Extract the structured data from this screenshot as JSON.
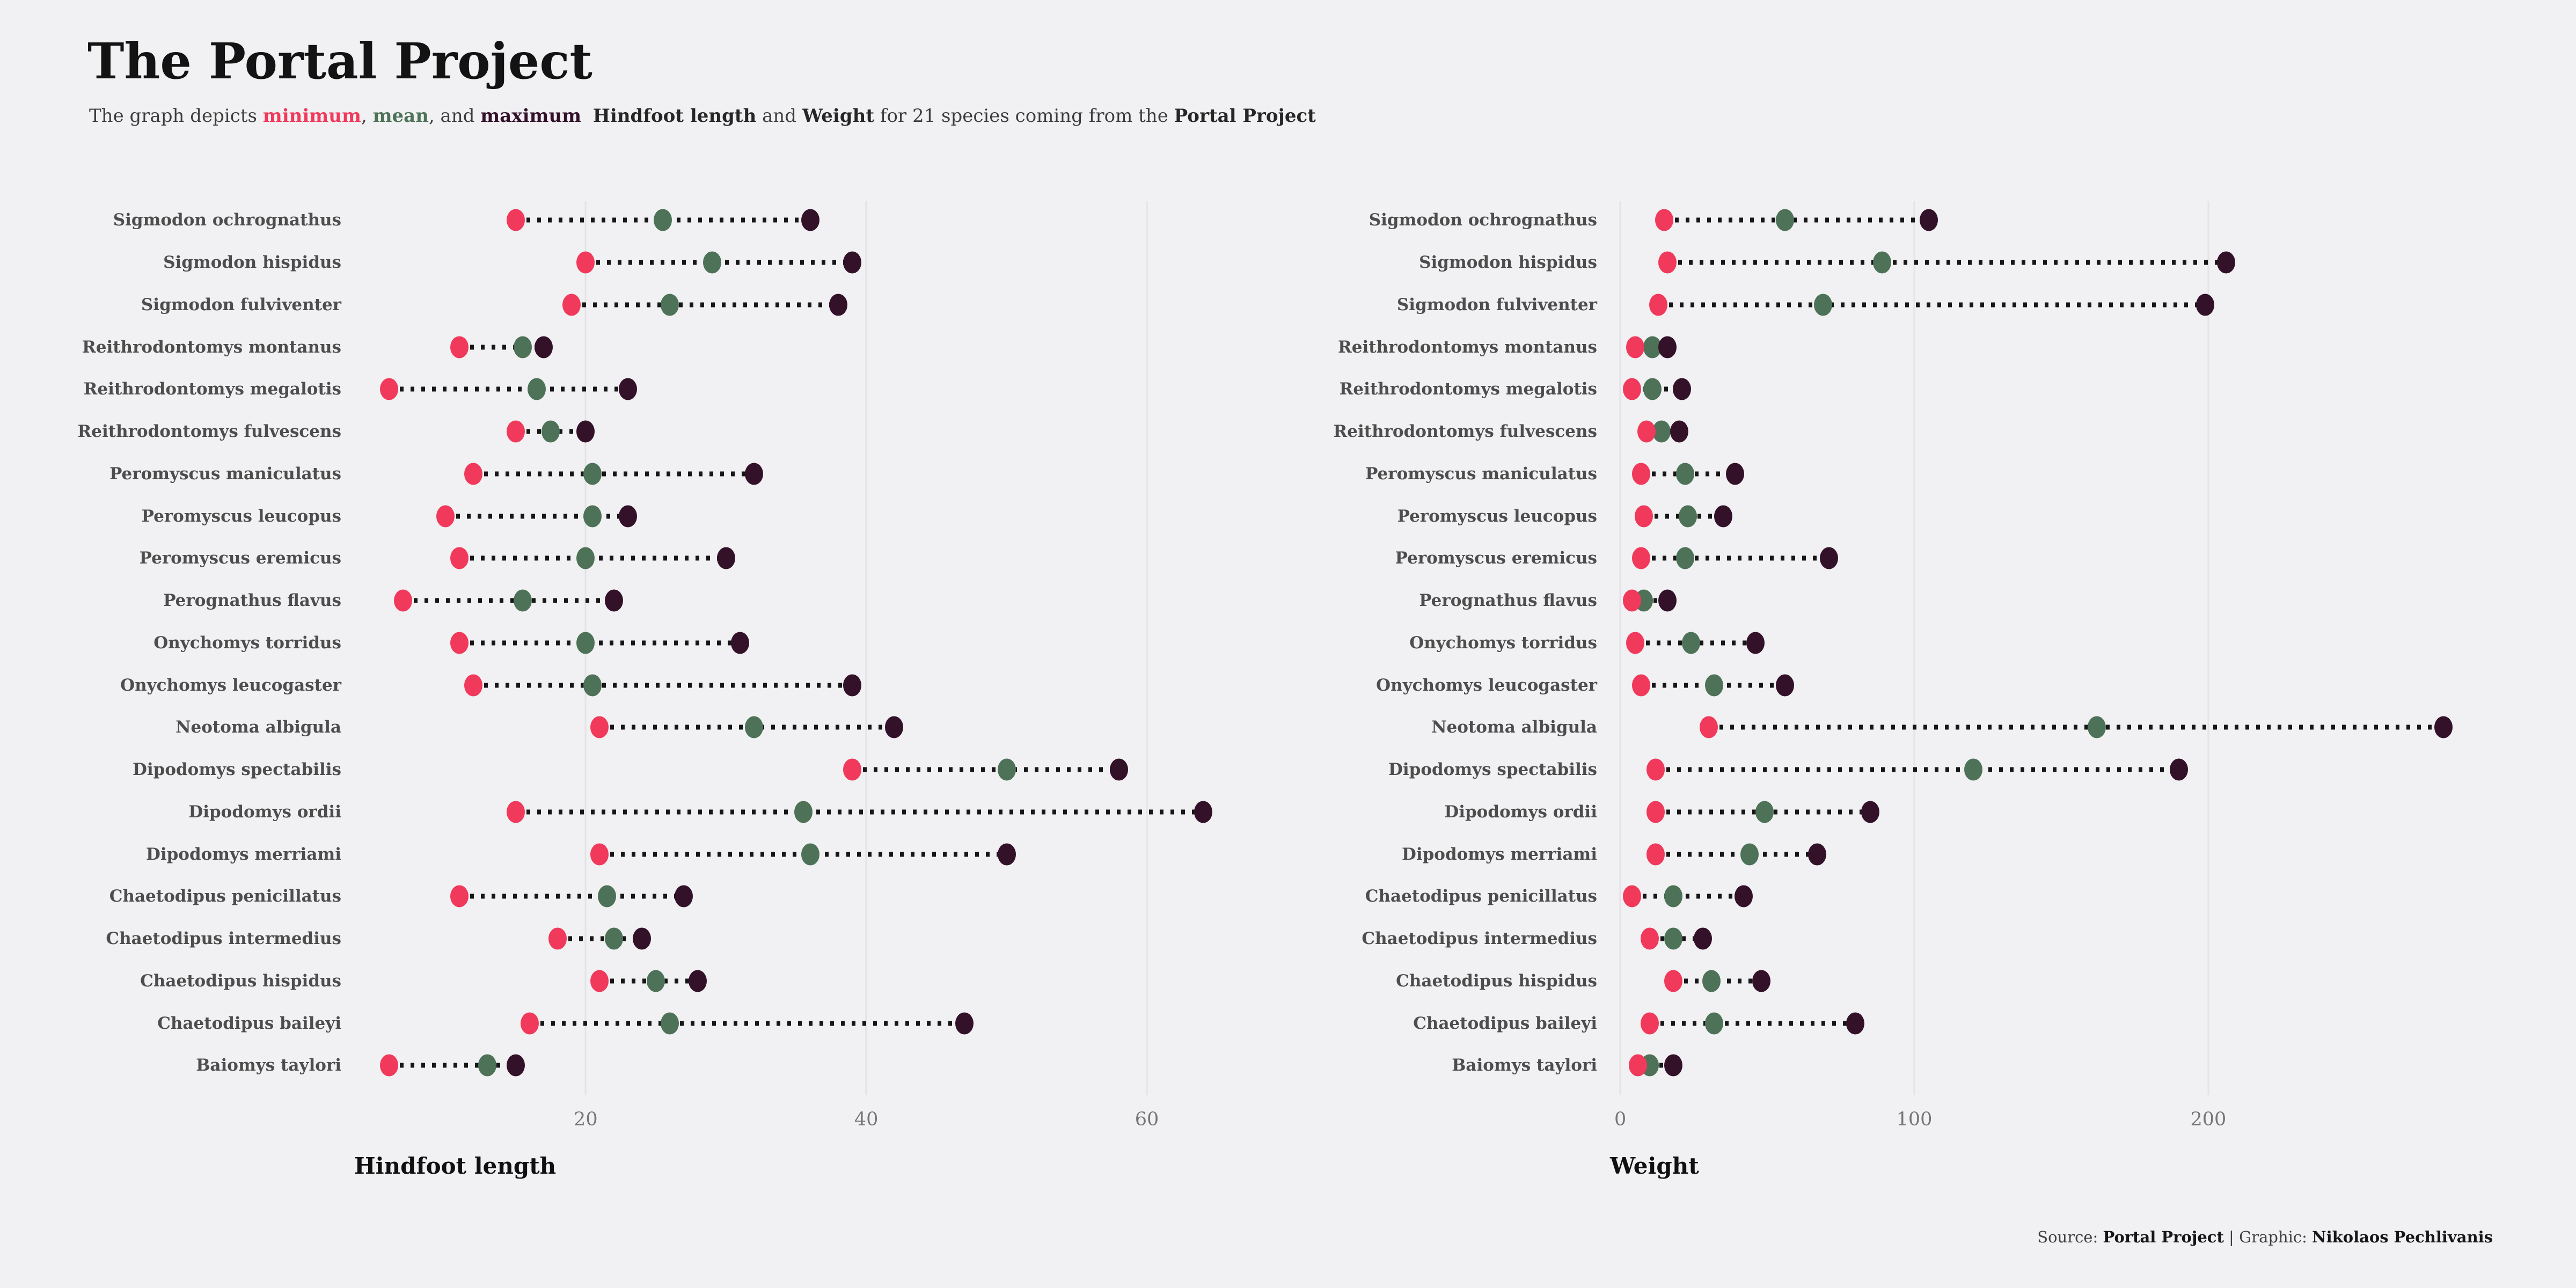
{
  "header": {
    "title": "The Portal Project",
    "subtitle_parts": [
      {
        "text": "The graph depicts ",
        "style": "normal"
      },
      {
        "text": "minimum",
        "style": "min"
      },
      {
        "text": ", ",
        "style": "normal"
      },
      {
        "text": "mean",
        "style": "mean"
      },
      {
        "text": ", and ",
        "style": "normal"
      },
      {
        "text": "maximum",
        "style": "max"
      },
      {
        "text": "  ",
        "style": "normal"
      },
      {
        "text": "Hindfoot length",
        "style": "strong"
      },
      {
        "text": " and ",
        "style": "normal"
      },
      {
        "text": "Weight",
        "style": "strong"
      },
      {
        "text": " for 21 species coming from the ",
        "style": "normal"
      },
      {
        "text": "Portal Project",
        "style": "strong"
      }
    ]
  },
  "colors": {
    "background": "#f1f1f3",
    "min": "#f0395b",
    "mean": "#4d7257",
    "max": "#331129",
    "grid": "#e4e4e7",
    "connector": "#161616"
  },
  "species": [
    "Sigmodon ochrognathus",
    "Sigmodon hispidus",
    "Sigmodon fulviventer",
    "Reithrodontomys montanus",
    "Reithrodontomys megalotis",
    "Reithrodontomys fulvescens",
    "Peromyscus maniculatus",
    "Peromyscus leucopus",
    "Peromyscus eremicus",
    "Perognathus flavus",
    "Onychomys torridus",
    "Onychomys leucogaster",
    "Neotoma albigula",
    "Dipodomys spectabilis",
    "Dipodomys ordii",
    "Dipodomys merriami",
    "Chaetodipus penicillatus",
    "Chaetodipus intermedius",
    "Chaetodipus hispidus",
    "Chaetodipus baileyi",
    "Baiomys taylori"
  ],
  "chart_data": [
    {
      "type": "dumbbell",
      "xlabel": "Hindfoot length",
      "legend": [
        "minimum",
        "mean",
        "maximum"
      ],
      "ticks": [
        20,
        40,
        60
      ],
      "xlim": [
        3.5,
        67
      ],
      "grid": true,
      "categories_ref": "species",
      "series": [
        {
          "species": "Sigmodon ochrognathus",
          "min": 15,
          "mean": 25.5,
          "max": 36
        },
        {
          "species": "Sigmodon hispidus",
          "min": 20,
          "mean": 29,
          "max": 39
        },
        {
          "species": "Sigmodon fulviventer",
          "min": 19,
          "mean": 26,
          "max": 38
        },
        {
          "species": "Reithrodontomys montanus",
          "min": 11,
          "mean": 15.5,
          "max": 17
        },
        {
          "species": "Reithrodontomys megalotis",
          "min": 6,
          "mean": 16.5,
          "max": 23
        },
        {
          "species": "Reithrodontomys fulvescens",
          "min": 15,
          "mean": 17.5,
          "max": 20
        },
        {
          "species": "Peromyscus maniculatus",
          "min": 12,
          "mean": 20.5,
          "max": 32
        },
        {
          "species": "Peromyscus leucopus",
          "min": 10,
          "mean": 20.5,
          "max": 23
        },
        {
          "species": "Peromyscus eremicus",
          "min": 11,
          "mean": 20,
          "max": 30
        },
        {
          "species": "Perognathus flavus",
          "min": 7,
          "mean": 15.5,
          "max": 22
        },
        {
          "species": "Onychomys torridus",
          "min": 11,
          "mean": 20,
          "max": 31
        },
        {
          "species": "Onychomys leucogaster",
          "min": 12,
          "mean": 20.5,
          "max": 39
        },
        {
          "species": "Neotoma albigula",
          "min": 21,
          "mean": 32,
          "max": 42
        },
        {
          "species": "Dipodomys spectabilis",
          "min": 39,
          "mean": 50,
          "max": 58
        },
        {
          "species": "Dipodomys ordii",
          "min": 15,
          "mean": 35.5,
          "max": 64
        },
        {
          "species": "Dipodomys merriami",
          "min": 21,
          "mean": 36,
          "max": 50
        },
        {
          "species": "Chaetodipus penicillatus",
          "min": 11,
          "mean": 21.5,
          "max": 27
        },
        {
          "species": "Chaetodipus intermedius",
          "min": 18,
          "mean": 22,
          "max": 24
        },
        {
          "species": "Chaetodipus hispidus",
          "min": 21,
          "mean": 25,
          "max": 28
        },
        {
          "species": "Chaetodipus baileyi",
          "min": 16,
          "mean": 26,
          "max": 47
        },
        {
          "species": "Baiomys taylori",
          "min": 6,
          "mean": 13,
          "max": 15
        }
      ]
    },
    {
      "type": "dumbbell",
      "xlabel": "Weight",
      "legend": [
        "minimum",
        "mean",
        "maximum"
      ],
      "ticks": [
        0,
        100,
        200
      ],
      "xlim": [
        -3.5,
        299.5
      ],
      "grid": true,
      "categories_ref": "species",
      "series": [
        {
          "species": "Sigmodon ochrognathus",
          "min": 15,
          "mean": 56,
          "max": 105
        },
        {
          "species": "Sigmodon hispidus",
          "min": 16,
          "mean": 89,
          "max": 206
        },
        {
          "species": "Sigmodon fulviventer",
          "min": 13,
          "mean": 69,
          "max": 199
        },
        {
          "species": "Reithrodontomys montanus",
          "min": 5,
          "mean": 11,
          "max": 16
        },
        {
          "species": "Reithrodontomys megalotis",
          "min": 4,
          "mean": 11,
          "max": 21
        },
        {
          "species": "Reithrodontomys fulvescens",
          "min": 9,
          "mean": 14,
          "max": 20
        },
        {
          "species": "Peromyscus maniculatus",
          "min": 7,
          "mean": 22,
          "max": 39
        },
        {
          "species": "Peromyscus leucopus",
          "min": 8,
          "mean": 23,
          "max": 35
        },
        {
          "species": "Peromyscus eremicus",
          "min": 7,
          "mean": 22,
          "max": 71
        },
        {
          "species": "Perognathus flavus",
          "min": 4,
          "mean": 8,
          "max": 16
        },
        {
          "species": "Onychomys torridus",
          "min": 5,
          "mean": 24,
          "max": 46
        },
        {
          "species": "Onychomys leucogaster",
          "min": 7,
          "mean": 32,
          "max": 56
        },
        {
          "species": "Neotoma albigula",
          "min": 30,
          "mean": 162,
          "max": 280
        },
        {
          "species": "Dipodomys spectabilis",
          "min": 12,
          "mean": 120,
          "max": 190
        },
        {
          "species": "Dipodomys ordii",
          "min": 12,
          "mean": 49,
          "max": 85
        },
        {
          "species": "Dipodomys merriami",
          "min": 12,
          "mean": 44,
          "max": 67
        },
        {
          "species": "Chaetodipus penicillatus",
          "min": 4,
          "mean": 18,
          "max": 42
        },
        {
          "species": "Chaetodipus intermedius",
          "min": 10,
          "mean": 18,
          "max": 28
        },
        {
          "species": "Chaetodipus hispidus",
          "min": 18,
          "mean": 31,
          "max": 48
        },
        {
          "species": "Chaetodipus baileyi",
          "min": 10,
          "mean": 32,
          "max": 80
        },
        {
          "species": "Baiomys taylori",
          "min": 6,
          "mean": 10,
          "max": 18
        }
      ]
    }
  ],
  "footer_parts": [
    {
      "text": "Source: ",
      "style": "normal"
    },
    {
      "text": "Portal Project",
      "style": "strong"
    },
    {
      "text": " | ",
      "style": "normal"
    },
    {
      "text": "Graphic: ",
      "style": "normal"
    },
    {
      "text": "Nikolaos Pechlivanis",
      "style": "strong"
    }
  ]
}
